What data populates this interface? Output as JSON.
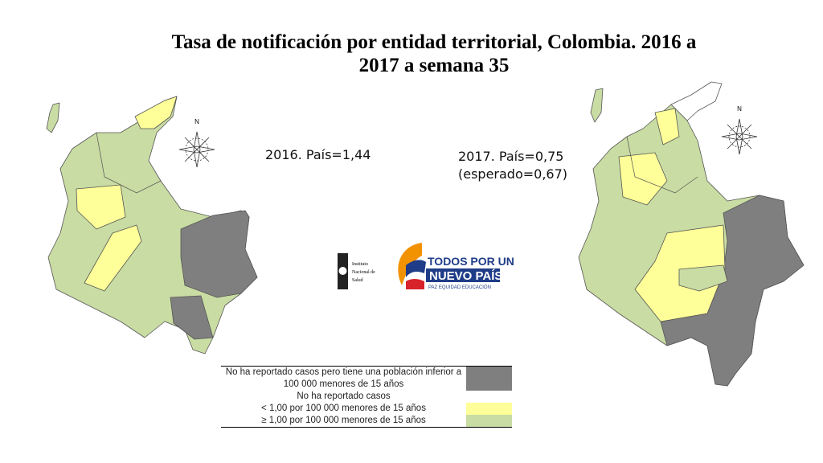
{
  "header": {
    "title": "Tasa de notificación por entidad territorial, Colombia. 2016 a 2017 a semana 35"
  },
  "maps": [
    {
      "label": "2016. País=1,44"
    },
    {
      "label": "2017. País=0,75",
      "note": "(esperado=0,67)"
    }
  ],
  "compass": "N",
  "logos": {
    "ins": [
      "Instituto",
      "Nacional de",
      "Salud"
    ],
    "gov": [
      "TODOS POR UN",
      "NUEVO PAÍS",
      "PAZ  EQUIDAD  EDUCACIÓN"
    ]
  },
  "legend": {
    "rows": [
      {
        "label": "No ha reportado casos pero tiene una población inferior a 100 000 menores de 15 años",
        "color": "#7f7f7f"
      },
      {
        "label": "No ha reportado casos",
        "color": "#ffffff"
      },
      {
        "label": "< 1,00 por 100 000 menores de 15 años",
        "color": "#ffff99"
      },
      {
        "label": "≥ 1,00 por 100 000 menores de 15 años",
        "color": "#c9dca3"
      }
    ]
  }
}
